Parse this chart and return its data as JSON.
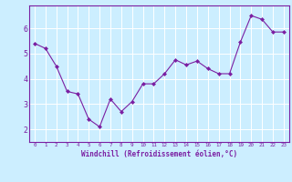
{
  "x": [
    0,
    1,
    2,
    3,
    4,
    5,
    6,
    7,
    8,
    9,
    10,
    11,
    12,
    13,
    14,
    15,
    16,
    17,
    18,
    19,
    20,
    21,
    22,
    23
  ],
  "y": [
    5.4,
    5.2,
    4.5,
    3.5,
    3.4,
    2.4,
    2.1,
    3.2,
    2.7,
    3.1,
    3.8,
    3.8,
    4.2,
    4.75,
    4.55,
    4.7,
    4.4,
    4.2,
    4.2,
    5.45,
    6.5,
    6.35,
    5.85,
    5.85
  ],
  "line_color": "#7b1fa2",
  "marker": "D",
  "marker_size": 2,
  "bg_color": "#cceeff",
  "grid_color": "#aadddd",
  "xlabel": "Windchill (Refroidissement éolien,°C)",
  "xlabel_color": "#7b1fa2",
  "ylabel_ticks": [
    2,
    3,
    4,
    5,
    6
  ],
  "ylim": [
    1.5,
    6.9
  ],
  "xlim": [
    -0.5,
    23.5
  ],
  "tick_color": "#7b1fa2",
  "spine_color": "#7b1fa2"
}
